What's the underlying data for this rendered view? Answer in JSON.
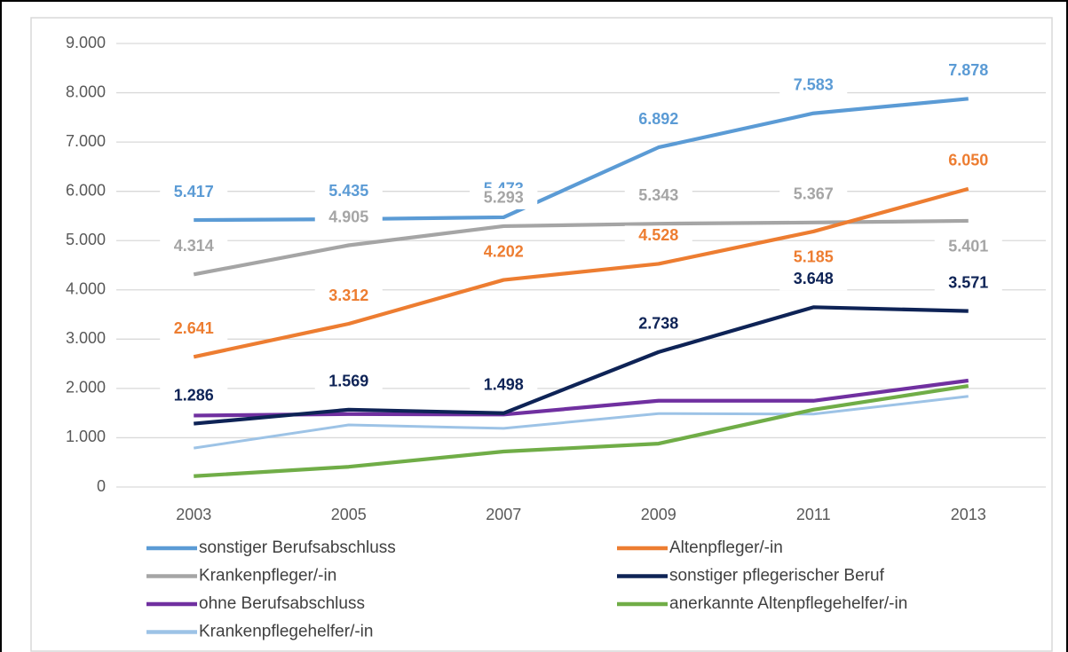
{
  "chart_data": {
    "type": "line",
    "categories": [
      "2003",
      "2005",
      "2007",
      "2009",
      "2011",
      "2013"
    ],
    "ylim": [
      0,
      9000
    ],
    "yticks": [
      0,
      {
        "value": 1000,
        "label": "1.000"
      },
      {
        "value": 2000,
        "label": "2.000"
      },
      {
        "value": 3000,
        "label": "3.000"
      },
      {
        "value": 4000,
        "label": "4.000"
      },
      {
        "value": 5000,
        "label": "5.000"
      },
      {
        "value": 6000,
        "label": "6.000"
      },
      {
        "value": 7000,
        "label": "7.000"
      },
      {
        "value": 8000,
        "label": "8.000"
      },
      {
        "value": 9000,
        "label": "9.000"
      }
    ],
    "grid": true,
    "legend": "bottom",
    "series": [
      {
        "name": "sonstiger Berufsabschluss",
        "color": "#5b9bd5",
        "values": [
          5417,
          5435,
          5473,
          6892,
          7583,
          7878
        ],
        "value_labels": [
          "5.417",
          "5.435",
          "5.473",
          "6.892",
          "7.583",
          "7.878"
        ]
      },
      {
        "name": "Altenpfleger/-in",
        "color": "#ed7d31",
        "values": [
          2641,
          3312,
          4202,
          4528,
          5185,
          6050
        ],
        "value_labels": [
          "2.641",
          "3.312",
          "4.202",
          "4.528",
          "5.185",
          "6.050"
        ]
      },
      {
        "name": "Krankenpfleger/-in",
        "color": "#a5a5a5",
        "values": [
          4314,
          4905,
          5293,
          5343,
          5367,
          5401
        ],
        "value_labels": [
          "4.314",
          "4.905",
          "5.293",
          "5.343",
          "5.367",
          "5.401"
        ]
      },
      {
        "name": "sonstiger pflegerischer Beruf",
        "color": "#0e2356",
        "values": [
          1286,
          1569,
          1498,
          2738,
          3648,
          3571
        ],
        "value_labels": [
          "1.286",
          "1.569",
          "1.498",
          "2.738",
          "3.648",
          "3.571"
        ]
      },
      {
        "name": "ohne Berufsabschluss",
        "color": "#7030a0",
        "values": [
          1450,
          1480,
          1470,
          1750,
          1750,
          2160
        ]
      },
      {
        "name": "anerkannte Altenpflegehelfer/-in",
        "color": "#70ad47",
        "values": [
          220,
          410,
          720,
          880,
          1570,
          2050
        ]
      },
      {
        "name": "Krankenpflegehelfer/-in",
        "color": "#9dc3e6",
        "values": [
          790,
          1260,
          1190,
          1490,
          1480,
          1840
        ]
      }
    ]
  }
}
